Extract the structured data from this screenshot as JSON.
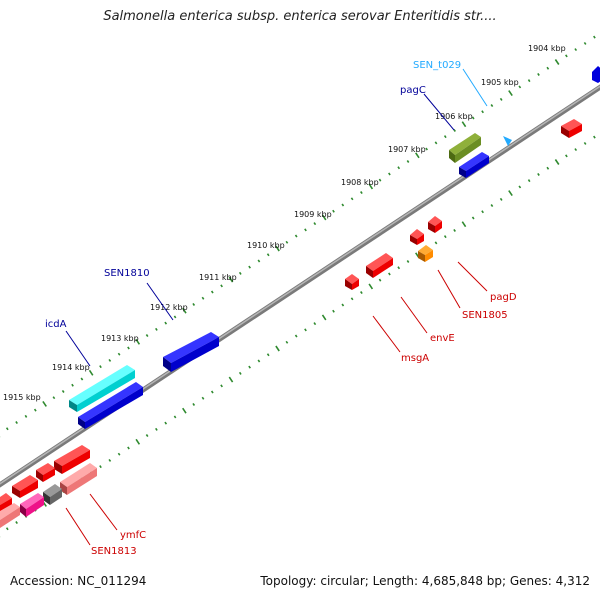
{
  "title": "Salmonella enterica subsp. enterica serovar Enteritidis str....",
  "footer": {
    "accession": "Accession: NC_011294",
    "stats": "Topology: circular; Length: 4,685,848 bp; Genes: 4,312"
  },
  "colors": {
    "backbone": "#808080",
    "tick": "#2f8a2f",
    "cds": "#ee0000",
    "blue_gene": "#0000dd",
    "cyan_gene": "#00dddd",
    "olive_gene": "#6b8e23",
    "orange_gene": "#ff8c00",
    "pink_gene": "#ee7777",
    "magenta_gene": "#ee1188",
    "gray_gene": "#666666",
    "label_red": "#cc0000",
    "label_blue": "#000099",
    "label_cyan": "#22aaff"
  },
  "kbp_labels": [
    {
      "text": "1904 kbp"
    },
    {
      "text": "1905 kbp"
    },
    {
      "text": "1906 kbp"
    },
    {
      "text": "1907 kbp"
    },
    {
      "text": "1908 kbp"
    },
    {
      "text": "1909 kbp"
    },
    {
      "text": "1910 kbp"
    },
    {
      "text": "1911 kbp"
    },
    {
      "text": "1912 kbp"
    },
    {
      "text": "1913 kbp"
    },
    {
      "text": "1914 kbp"
    },
    {
      "text": "1915 kbp"
    }
  ],
  "gene_labels": [
    {
      "name": "SEN_t029",
      "color": "label_cyan"
    },
    {
      "name": "pagC",
      "color": "label_blue"
    },
    {
      "name": "SEN1810",
      "color": "label_blue"
    },
    {
      "name": "icdA",
      "color": "label_blue"
    },
    {
      "name": "pagD",
      "color": "label_red"
    },
    {
      "name": "SEN1805",
      "color": "label_red"
    },
    {
      "name": "envE",
      "color": "label_red"
    },
    {
      "name": "msgA",
      "color": "label_red"
    },
    {
      "name": "ymfC",
      "color": "label_red"
    },
    {
      "name": "SEN1813",
      "color": "label_red"
    }
  ]
}
